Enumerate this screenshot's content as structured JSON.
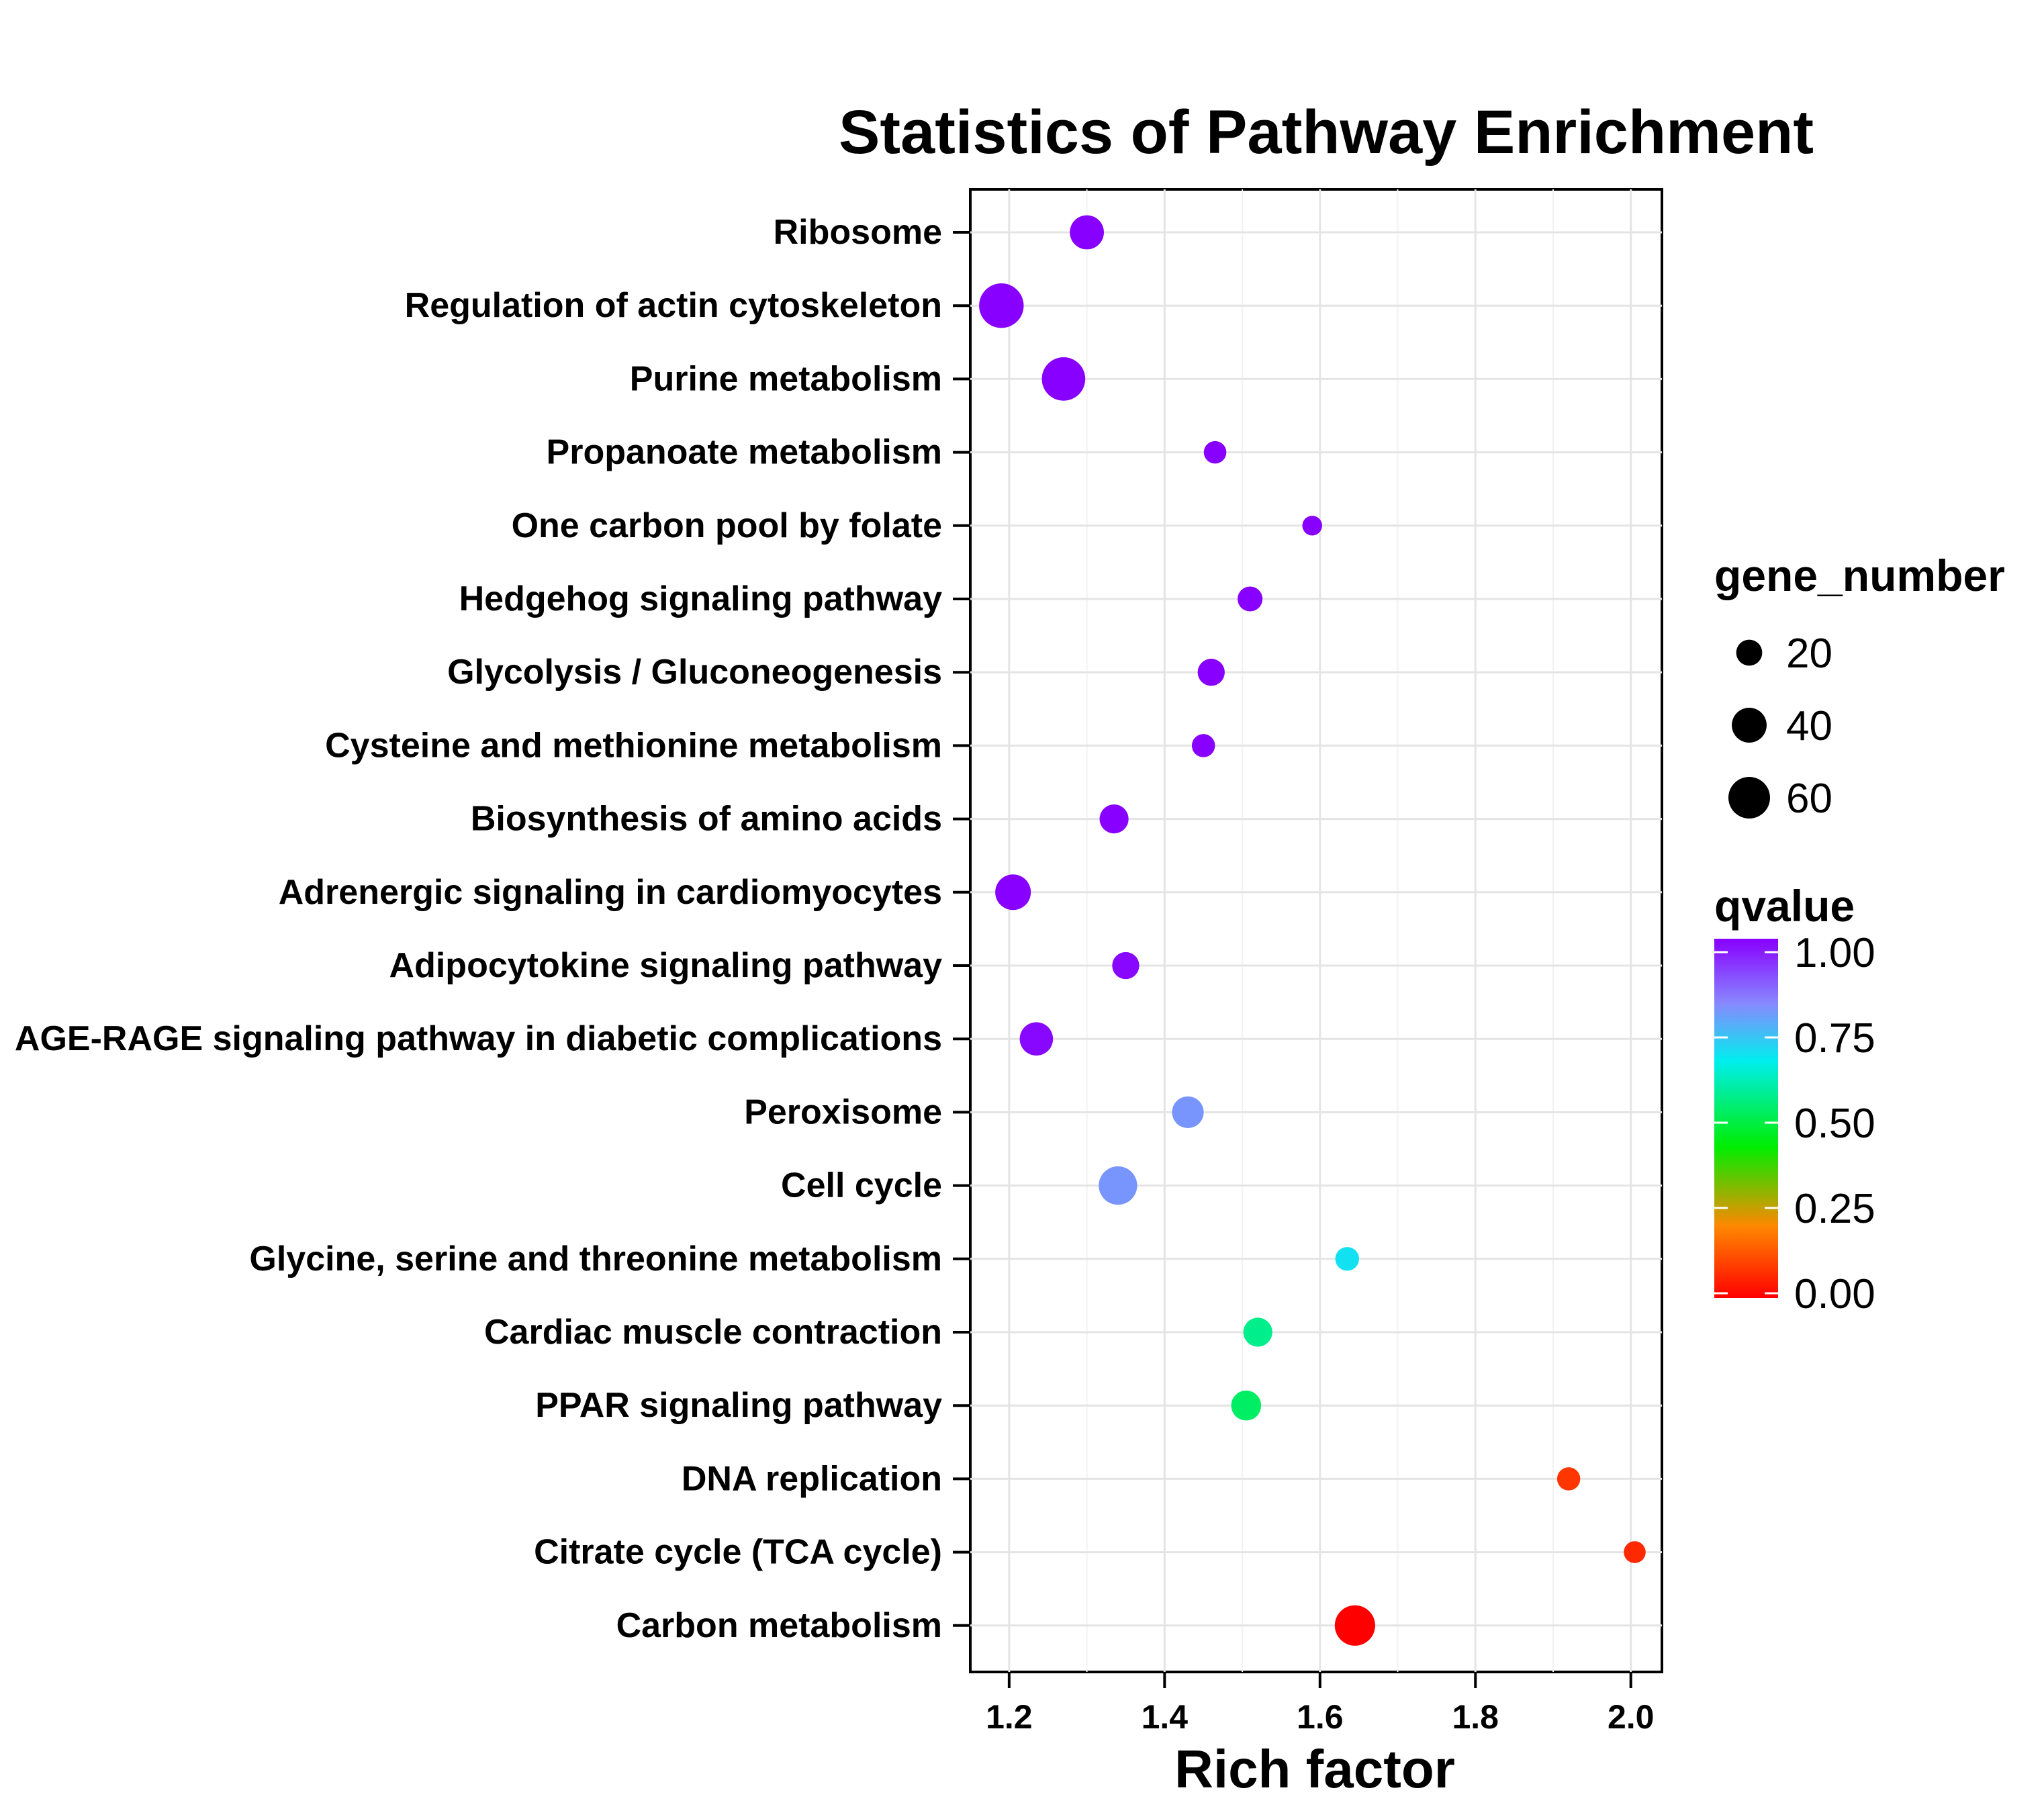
{
  "chart_data": {
    "type": "scatter",
    "title": "Statistics of Pathway Enrichment",
    "xlabel": "Rich factor",
    "ylabel": "",
    "xlim": [
      1.15,
      2.04
    ],
    "x_ticks": [
      "1.2",
      "1.4",
      "1.6",
      "1.8",
      "2.0"
    ],
    "grid": true,
    "categories": [
      "Ribosome",
      "Regulation of actin cytoskeleton",
      "Purine metabolism",
      "Propanoate metabolism",
      "One carbon pool by folate",
      "Hedgehog signaling pathway",
      "Glycolysis / Gluconeogenesis",
      "Cysteine and methionine metabolism",
      "Biosynthesis of amino acids",
      "Adrenergic signaling in cardiomyocytes",
      "Adipocytokine signaling pathway",
      "AGE-RAGE signaling pathway in diabetic complications",
      "Peroxisome",
      "Cell cycle",
      "Glycine, serine and threonine metabolism",
      "Cardiac muscle contraction",
      "PPAR signaling pathway",
      "DNA replication",
      "Citrate cycle (TCA cycle)",
      "Carbon metabolism"
    ],
    "points": [
      {
        "pathway": "Ribosome",
        "rich_factor": 1.3,
        "gene_number": 38,
        "qvalue": 1.0
      },
      {
        "pathway": "Regulation of actin cytoskeleton",
        "rich_factor": 1.19,
        "gene_number": 70,
        "qvalue": 1.0
      },
      {
        "pathway": "Purine metabolism",
        "rich_factor": 1.27,
        "gene_number": 66,
        "qvalue": 1.0
      },
      {
        "pathway": "Propanoate metabolism",
        "rich_factor": 1.465,
        "gene_number": 14,
        "qvalue": 1.0
      },
      {
        "pathway": "One carbon pool by folate",
        "rich_factor": 1.59,
        "gene_number": 10,
        "qvalue": 1.0
      },
      {
        "pathway": "Hedgehog signaling pathway",
        "rich_factor": 1.51,
        "gene_number": 18,
        "qvalue": 1.0
      },
      {
        "pathway": "Glycolysis / Gluconeogenesis",
        "rich_factor": 1.46,
        "gene_number": 22,
        "qvalue": 1.0
      },
      {
        "pathway": "Cysteine and methionine metabolism",
        "rich_factor": 1.45,
        "gene_number": 15,
        "qvalue": 1.0
      },
      {
        "pathway": "Biosynthesis of amino acids",
        "rich_factor": 1.335,
        "gene_number": 26,
        "qvalue": 1.0
      },
      {
        "pathway": "Adrenergic signaling in cardiomyocytes",
        "rich_factor": 1.205,
        "gene_number": 42,
        "qvalue": 1.0
      },
      {
        "pathway": "Adipocytokine signaling pathway",
        "rich_factor": 1.35,
        "gene_number": 22,
        "qvalue": 0.99
      },
      {
        "pathway": "AGE-RAGE signaling pathway in diabetic complications",
        "rich_factor": 1.235,
        "gene_number": 36,
        "qvalue": 0.99
      },
      {
        "pathway": "Peroxisome",
        "rich_factor": 1.43,
        "gene_number": 32,
        "qvalue": 0.8
      },
      {
        "pathway": "Cell cycle",
        "rich_factor": 1.34,
        "gene_number": 50,
        "qvalue": 0.8
      },
      {
        "pathway": "Glycine, serine and threonine metabolism",
        "rich_factor": 1.635,
        "gene_number": 16,
        "qvalue": 0.68
      },
      {
        "pathway": "Cardiac muscle contraction",
        "rich_factor": 1.52,
        "gene_number": 26,
        "qvalue": 0.56
      },
      {
        "pathway": "PPAR signaling pathway",
        "rich_factor": 1.505,
        "gene_number": 28,
        "qvalue": 0.52
      },
      {
        "pathway": "DNA replication",
        "rich_factor": 1.92,
        "gene_number": 15,
        "qvalue": 0.08
      },
      {
        "pathway": "Citrate cycle (TCA cycle)",
        "rich_factor": 2.005,
        "gene_number": 13,
        "qvalue": 0.06
      },
      {
        "pathway": "Carbon metabolism",
        "rich_factor": 1.645,
        "gene_number": 56,
        "qvalue": 0.0
      }
    ],
    "size_legend": {
      "title": "gene_number",
      "entries": [
        {
          "label": "20",
          "value": 20
        },
        {
          "label": "40",
          "value": 40
        },
        {
          "label": "60",
          "value": 60
        }
      ]
    },
    "color_legend": {
      "title": "qvalue",
      "range": [
        0,
        1
      ],
      "ticks": [
        {
          "label": "1.00",
          "value": 1.0
        },
        {
          "label": "0.75",
          "value": 0.75
        },
        {
          "label": "0.50",
          "value": 0.5
        },
        {
          "label": "0.25",
          "value": 0.25
        },
        {
          "label": "0.00",
          "value": 0.0
        }
      ],
      "colors": [
        "#ff0000",
        "#ff8800",
        "#00ee00",
        "#00eeee",
        "#8888ff",
        "#8800ff"
      ]
    }
  }
}
